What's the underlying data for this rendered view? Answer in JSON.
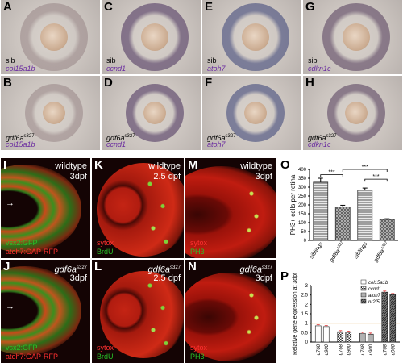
{
  "ish_panels": [
    {
      "letter": "A",
      "geno": "sib",
      "gene": "col15a1b"
    },
    {
      "letter": "C",
      "geno": "sib",
      "gene": "ccnd1"
    },
    {
      "letter": "E",
      "geno": "sib",
      "gene": "atoh7"
    },
    {
      "letter": "G",
      "geno": "sib",
      "gene": "cdkn1c"
    },
    {
      "letter": "B",
      "geno": "gdf6a",
      "sup": "s327",
      "gene": "col15a1b"
    },
    {
      "letter": "D",
      "geno": "gdf6a",
      "sup": "s327",
      "gene": "ccnd1"
    },
    {
      "letter": "F",
      "geno": "gdf6a",
      "sup": "s327",
      "gene": "atoh7"
    },
    {
      "letter": "H",
      "geno": "gdf6a",
      "sup": "s327",
      "gene": "cdkn1c"
    }
  ],
  "fluo_panels": {
    "I": {
      "letter": "I",
      "line1": "wildtype",
      "line2": "3dpf",
      "green": "vsx2:GFP",
      "red": "atoh7:GAP-RFP"
    },
    "J": {
      "letter": "J",
      "line1": "gdf6a",
      "sup": "s327",
      "line2": "3dpf",
      "green": "vsx2:GFP",
      "red": "atoh7:GAP-RFP"
    },
    "K": {
      "letter": "K",
      "line1": "wildtype",
      "line2": "2.5 dpf",
      "red": "sytox",
      "green": "BrdU"
    },
    "L": {
      "letter": "L",
      "line1": "gdf6a",
      "sup": "s327",
      "line2": "2.5 dpf",
      "red": "sytox",
      "green": "BrdU"
    },
    "M": {
      "letter": "M",
      "line1": "wildtype",
      "line2": "3dpf",
      "red": "sytox",
      "green": "PH3"
    },
    "N": {
      "letter": "N",
      "line1": "gdf6a",
      "sup": "s327",
      "line2": "3dpf",
      "red": "sytox",
      "green": "PH3"
    }
  },
  "chart_data": [
    {
      "panel": "O",
      "type": "bar",
      "ylabel": "PH3+ cells per retina",
      "ylim": [
        0,
        400
      ],
      "yticks": [
        0,
        50,
        100,
        150,
        200,
        250,
        300,
        350,
        400
      ],
      "categories": [
        "siblings",
        "gdf6a s327",
        "siblings",
        "gdf6a s327"
      ],
      "values": [
        328,
        188,
        283,
        118
      ],
      "errors": [
        22,
        10,
        12,
        4
      ],
      "patterns": [
        "h",
        "x",
        "h",
        "x"
      ],
      "significance": [
        "***",
        "***",
        "***"
      ]
    },
    {
      "panel": "P",
      "type": "bar",
      "ylabel": "Relative gene expression at 3dpf",
      "ylim": [
        0,
        3
      ],
      "yticks": [
        0,
        0.5,
        1,
        1.5,
        2,
        2.5,
        3
      ],
      "series": [
        {
          "name": "col15a1b",
          "values": [
            0.86,
            0.82
          ]
        },
        {
          "name": "ccnd1",
          "values": [
            0.55,
            0.52
          ]
        },
        {
          "name": "atoh7",
          "values": [
            0.46,
            0.42
          ]
        },
        {
          "name": "nr2f5",
          "values": [
            2.65,
            2.52
          ]
        }
      ],
      "x_labels": [
        "u768",
        "u900"
      ],
      "reference_line": 1
    }
  ]
}
